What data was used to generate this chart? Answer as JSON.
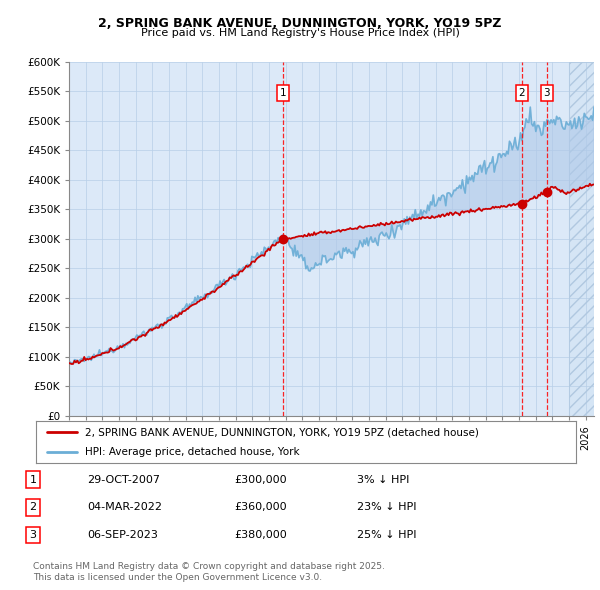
{
  "title1": "2, SPRING BANK AVENUE, DUNNINGTON, YORK, YO19 5PZ",
  "title2": "Price paid vs. HM Land Registry's House Price Index (HPI)",
  "ylabel_ticks": [
    "£0",
    "£50K",
    "£100K",
    "£150K",
    "£200K",
    "£250K",
    "£300K",
    "£350K",
    "£400K",
    "£450K",
    "£500K",
    "£550K",
    "£600K"
  ],
  "ytick_values": [
    0,
    50000,
    100000,
    150000,
    200000,
    250000,
    300000,
    350000,
    400000,
    450000,
    500000,
    550000,
    600000
  ],
  "xmin": 1995,
  "xmax": 2026.5,
  "ymin": 0,
  "ymax": 600000,
  "sale_dates": [
    2007.83,
    2022.17,
    2023.67
  ],
  "sale_prices": [
    300000,
    360000,
    380000
  ],
  "legend_line1": "2, SPRING BANK AVENUE, DUNNINGTON, YORK, YO19 5PZ (detached house)",
  "legend_line2": "HPI: Average price, detached house, York",
  "transaction1_label": "1",
  "transaction1_date": "29-OCT-2007",
  "transaction1_price": "£300,000",
  "transaction1_hpi": "3% ↓ HPI",
  "transaction2_label": "2",
  "transaction2_date": "04-MAR-2022",
  "transaction2_price": "£360,000",
  "transaction2_hpi": "23% ↓ HPI",
  "transaction3_label": "3",
  "transaction3_date": "06-SEP-2023",
  "transaction3_price": "£380,000",
  "transaction3_hpi": "25% ↓ HPI",
  "footer": "Contains HM Land Registry data © Crown copyright and database right 2025.\nThis data is licensed under the Open Government Licence v3.0.",
  "bg_color": "#dce9f8",
  "grid_color": "#b8cfe8",
  "red_line_color": "#cc0000",
  "blue_line_color": "#6baed6",
  "fill_color": "#aec8e8"
}
